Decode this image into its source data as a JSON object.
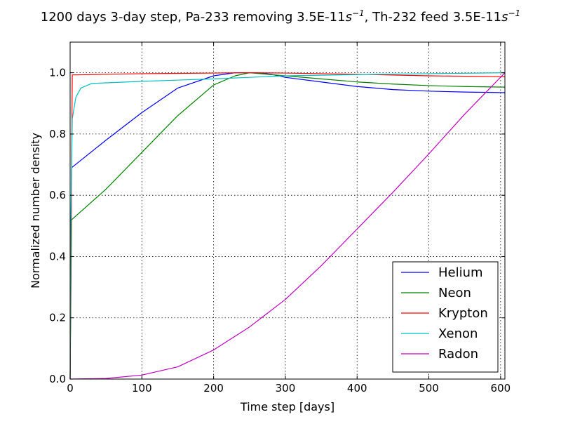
{
  "chart_data": {
    "type": "line",
    "title": {
      "text_part1": "1200 days 3-day step, Pa-233 removing 3.5E-11",
      "exp1_base": "s",
      "exp1_power": "−1",
      "text_part2": ", Th-232 feed 3.5E-11",
      "exp2_base": "s",
      "exp2_power": "−1"
    },
    "xlabel": "Time step [days]",
    "ylabel": "Normalized number density",
    "xlim": [
      0,
      606
    ],
    "ylim": [
      0,
      1.1
    ],
    "x_ticks": [
      0,
      100,
      200,
      300,
      400,
      500,
      600
    ],
    "y_ticks": [
      0.0,
      0.2,
      0.4,
      0.6,
      0.8,
      1.0
    ],
    "y_tick_labels": [
      "0.0",
      "0.2",
      "0.4",
      "0.6",
      "0.8",
      "1.0"
    ],
    "grid": true,
    "legend_position": "lower-right",
    "series": [
      {
        "name": "Helium",
        "color": "#0000ff",
        "points": [
          [
            0,
            0
          ],
          [
            2,
            0.69
          ],
          [
            50,
            0.78
          ],
          [
            100,
            0.87
          ],
          [
            150,
            0.95
          ],
          [
            200,
            0.99
          ],
          [
            230,
            1.0
          ],
          [
            260,
            1.0
          ],
          [
            280,
            0.995
          ],
          [
            300,
            0.985
          ],
          [
            350,
            0.97
          ],
          [
            400,
            0.955
          ],
          [
            450,
            0.945
          ],
          [
            500,
            0.94
          ],
          [
            550,
            0.937
          ],
          [
            606,
            0.935
          ]
        ]
      },
      {
        "name": "Neon",
        "color": "#008000",
        "points": [
          [
            0,
            0
          ],
          [
            2,
            0.52
          ],
          [
            50,
            0.62
          ],
          [
            100,
            0.74
          ],
          [
            150,
            0.86
          ],
          [
            200,
            0.96
          ],
          [
            230,
            0.99
          ],
          [
            250,
            1.0
          ],
          [
            300,
            0.99
          ],
          [
            350,
            0.98
          ],
          [
            400,
            0.97
          ],
          [
            450,
            0.963
          ],
          [
            500,
            0.958
          ],
          [
            550,
            0.955
          ],
          [
            606,
            0.953
          ]
        ]
      },
      {
        "name": "Krypton",
        "color": "#ff0000",
        "points": [
          [
            0,
            0
          ],
          [
            3,
            0.993
          ],
          [
            50,
            0.995
          ],
          [
            100,
            0.997
          ],
          [
            150,
            0.998
          ],
          [
            200,
            0.999
          ],
          [
            250,
            1.0
          ],
          [
            300,
            0.999
          ],
          [
            400,
            0.995
          ],
          [
            500,
            0.99
          ],
          [
            606,
            0.987
          ]
        ]
      },
      {
        "name": "Xenon",
        "color": "#00bfbf",
        "points": [
          [
            0,
            0
          ],
          [
            1,
            0.5
          ],
          [
            3,
            0.85
          ],
          [
            8,
            0.92
          ],
          [
            15,
            0.95
          ],
          [
            30,
            0.965
          ],
          [
            100,
            0.972
          ],
          [
            200,
            0.98
          ],
          [
            250,
            0.985
          ],
          [
            300,
            0.99
          ],
          [
            400,
            0.994
          ],
          [
            500,
            0.997
          ],
          [
            606,
            1.0
          ]
        ]
      },
      {
        "name": "Radon",
        "color": "#bf00bf",
        "points": [
          [
            0,
            0
          ],
          [
            50,
            0.002
          ],
          [
            100,
            0.013
          ],
          [
            150,
            0.04
          ],
          [
            200,
            0.095
          ],
          [
            250,
            0.17
          ],
          [
            300,
            0.26
          ],
          [
            350,
            0.37
          ],
          [
            400,
            0.49
          ],
          [
            450,
            0.61
          ],
          [
            500,
            0.735
          ],
          [
            550,
            0.865
          ],
          [
            606,
            1.0
          ]
        ]
      }
    ]
  }
}
